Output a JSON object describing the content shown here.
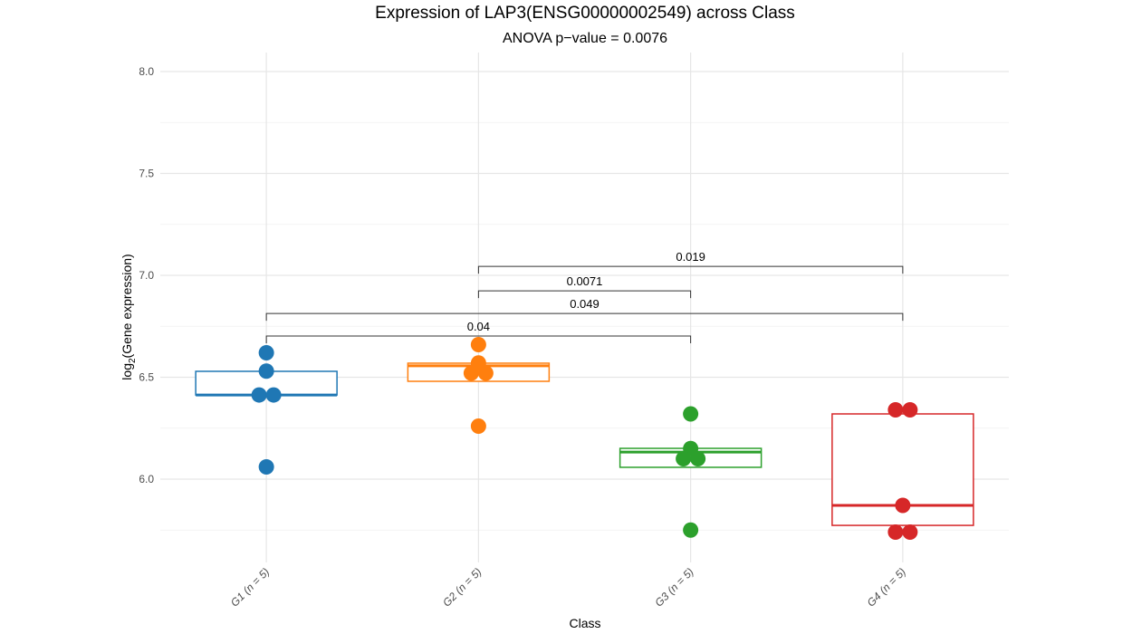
{
  "chart_data": {
    "type": "box",
    "title": "Expression of LAP3(ENSG00000002549) across Class",
    "subtitle": "ANOVA p−value = 0.0076",
    "xlabel": "Class",
    "ylabel_prefix": "log",
    "ylabel_sub": "2",
    "ylabel_suffix": "(Gene expression)",
    "ylim": [
      5.6,
      8.07
    ],
    "yticks": [
      6.0,
      6.5,
      7.0,
      7.5,
      8.0
    ],
    "ytick_labels": [
      "6.0",
      "6.5",
      "7.0",
      "7.5",
      "8.0"
    ],
    "yminor": [
      5.75,
      6.25,
      6.75,
      7.25,
      7.75
    ],
    "grid": true,
    "categories": [
      "G1 (n = 5)",
      "G2 (n = 5)",
      "G3 (n = 5)",
      "G4 (n = 5)"
    ],
    "series": [
      {
        "name": "G1",
        "color": "#1f77b4",
        "q1": 6.413,
        "median": 6.413,
        "q3": 6.529,
        "whisker_low": 6.413,
        "whisker_high": 6.529,
        "points": [
          6.62,
          6.53,
          6.413,
          6.413,
          6.06
        ]
      },
      {
        "name": "G2",
        "color": "#ff7f0e",
        "q1": 6.48,
        "median": 6.556,
        "q3": 6.569,
        "whisker_low": 6.48,
        "whisker_high": 6.569,
        "points": [
          6.66,
          6.57,
          6.52,
          6.52,
          6.26
        ]
      },
      {
        "name": "G3",
        "color": "#2ca02c",
        "q1": 6.058,
        "median": 6.133,
        "q3": 6.151,
        "whisker_low": 6.058,
        "whisker_high": 6.151,
        "points": [
          6.32,
          6.15,
          6.1,
          6.1,
          5.75
        ]
      },
      {
        "name": "G4",
        "color": "#d62728",
        "q1": 5.773,
        "median": 5.871,
        "q3": 6.32,
        "whisker_low": 5.773,
        "whisker_high": 6.32,
        "points": [
          6.34,
          6.34,
          5.871,
          5.74,
          5.74
        ]
      }
    ],
    "comparisons": [
      {
        "from": 1,
        "to": 3,
        "y": 7.044,
        "label": "0.019"
      },
      {
        "from": 1,
        "to": 2,
        "y": 6.924,
        "label": "0.0071"
      },
      {
        "from": 0,
        "to": 3,
        "y": 6.813,
        "label": "0.049"
      },
      {
        "from": 0,
        "to": 2,
        "y": 6.702,
        "label": "0.04"
      }
    ]
  }
}
